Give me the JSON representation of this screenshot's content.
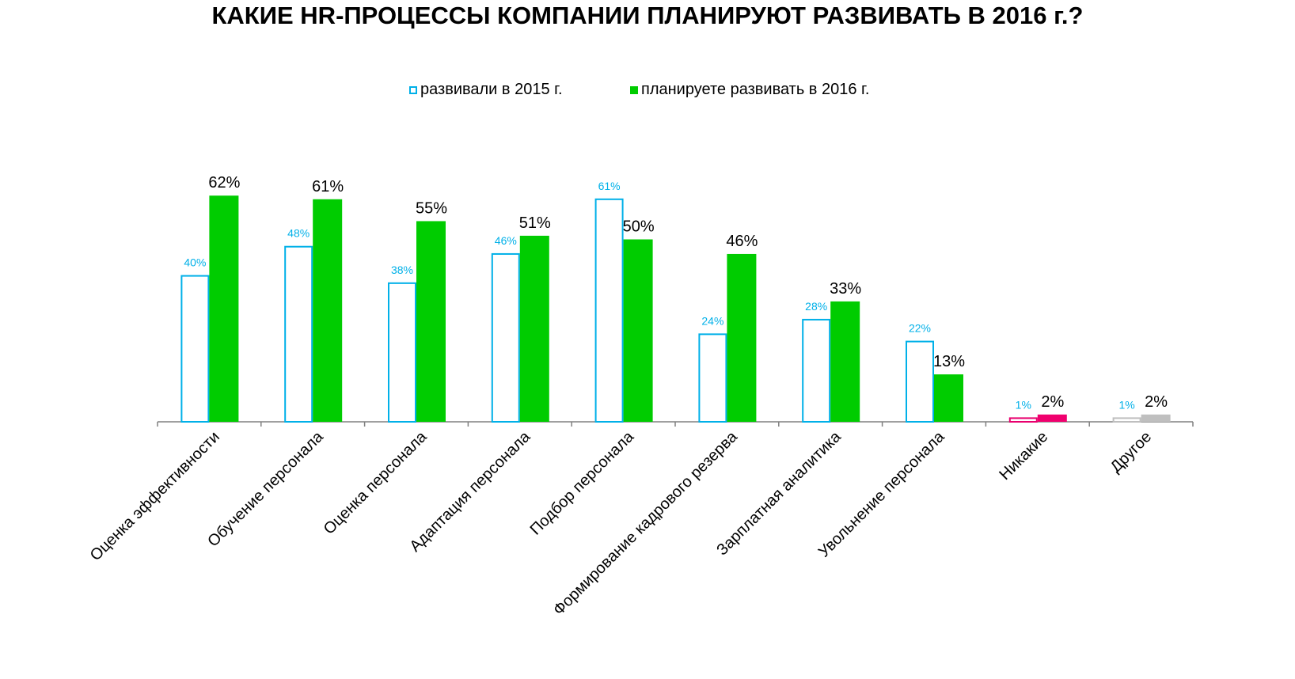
{
  "title": "КАКИЕ HR-ПРОЦЕССЫ КОМПАНИИ ПЛАНИРУЮТ РАЗВИВАТЬ В 2016 г.?",
  "legend": {
    "s2015": "развивали в 2015 г.",
    "s2016": "планируете развивать в 2016 г."
  },
  "colors": {
    "outline_2015": "#00b0e8",
    "fill_2016": "#00cc00",
    "none_2015": "#e8006e",
    "none_2016": "#f0006e",
    "other_2015": "#bfbfbf",
    "other_2016": "#bfbfbf",
    "label_2015": "#00b0e8",
    "label_2016": "#000000",
    "axis": "#808080"
  },
  "chart_data": {
    "type": "bar",
    "title": "КАКИЕ HR-ПРОЦЕССЫ КОМПАНИИ ПЛАНИРУЮТ РАЗВИВАТЬ В 2016 г.?",
    "categories": [
      "Оценка эффективности",
      "Обучение персонала",
      "Оценка персонала",
      "Адаптация персонала",
      "Подбор персонала",
      "Формирование кадрового резерва",
      "Зарплатная аналитика",
      "Увольнение персонала",
      "Никакие",
      "Другое"
    ],
    "series": [
      {
        "name": "развивали в 2015 г.",
        "values": [
          40,
          48,
          38,
          46,
          61,
          24,
          28,
          22,
          1,
          1
        ],
        "labels": [
          "40%",
          "48%",
          "38%",
          "46%",
          "61%",
          "24%",
          "28%",
          "22%",
          "1%",
          "1%"
        ]
      },
      {
        "name": "планируете развивать в 2016 г.",
        "values": [
          62,
          61,
          55,
          51,
          50,
          46,
          33,
          13,
          2,
          2
        ],
        "labels": [
          "62%",
          "61%",
          "55%",
          "51%",
          "50%",
          "46%",
          "33%",
          "13%",
          "2%",
          "2%"
        ]
      }
    ],
    "ylim": [
      0,
      66
    ],
    "grid": false,
    "legend_position": "top"
  }
}
